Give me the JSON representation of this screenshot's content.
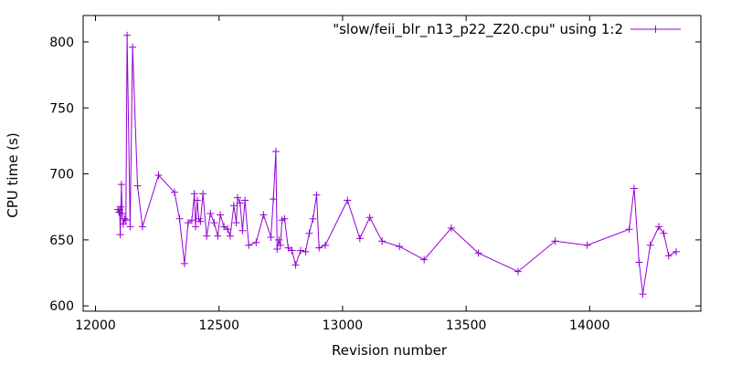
{
  "chart_data": {
    "type": "line",
    "xlabel": "Revision number",
    "ylabel": "CPU time (s)",
    "xlim": [
      11950,
      14450
    ],
    "ylim": [
      596,
      820
    ],
    "xticks": [
      12000,
      12500,
      13000,
      13500,
      14000
    ],
    "yticks": [
      600,
      650,
      700,
      750,
      800
    ],
    "grid": false,
    "legend_position": "top-right",
    "series": [
      {
        "name": "\"slow/feii_blr_n13_p22_Z20.cpu\" using 1:2",
        "color": "#9400d3",
        "marker": "plus",
        "points": [
          [
            12090,
            673
          ],
          [
            12095,
            671
          ],
          [
            12098,
            673
          ],
          [
            12100,
            654
          ],
          [
            12103,
            675
          ],
          [
            12105,
            692
          ],
          [
            12108,
            670
          ],
          [
            12112,
            662
          ],
          [
            12118,
            666
          ],
          [
            12123,
            665
          ],
          [
            12128,
            805
          ],
          [
            12140,
            660
          ],
          [
            12150,
            796
          ],
          [
            12170,
            691
          ],
          [
            12190,
            660
          ],
          [
            12255,
            699
          ],
          [
            12320,
            686
          ],
          [
            12340,
            666
          ],
          [
            12360,
            632
          ],
          [
            12375,
            663
          ],
          [
            12390,
            665
          ],
          [
            12400,
            685
          ],
          [
            12405,
            660
          ],
          [
            12412,
            680
          ],
          [
            12418,
            666
          ],
          [
            12425,
            664
          ],
          [
            12435,
            685
          ],
          [
            12450,
            653
          ],
          [
            12465,
            670
          ],
          [
            12480,
            663
          ],
          [
            12495,
            653
          ],
          [
            12505,
            669
          ],
          [
            12520,
            660
          ],
          [
            12535,
            658
          ],
          [
            12545,
            653
          ],
          [
            12560,
            676
          ],
          [
            12570,
            663
          ],
          [
            12575,
            682
          ],
          [
            12585,
            678
          ],
          [
            12595,
            657
          ],
          [
            12605,
            680
          ],
          [
            12620,
            646
          ],
          [
            12650,
            648
          ],
          [
            12680,
            669
          ],
          [
            12710,
            652
          ],
          [
            12720,
            681
          ],
          [
            12730,
            717
          ],
          [
            12735,
            643
          ],
          [
            12742,
            650
          ],
          [
            12748,
            646
          ],
          [
            12755,
            665
          ],
          [
            12765,
            666
          ],
          [
            12780,
            644
          ],
          [
            12795,
            642
          ],
          [
            12810,
            631
          ],
          [
            12830,
            642
          ],
          [
            12850,
            641
          ],
          [
            12865,
            655
          ],
          [
            12880,
            666
          ],
          [
            12895,
            684
          ],
          [
            12905,
            644
          ],
          [
            12930,
            646
          ],
          [
            13020,
            680
          ],
          [
            13070,
            651
          ],
          [
            13110,
            667
          ],
          [
            13160,
            649
          ],
          [
            13230,
            645
          ],
          [
            13330,
            635
          ],
          [
            13440,
            659
          ],
          [
            13550,
            640
          ],
          [
            13710,
            626
          ],
          [
            13860,
            649
          ],
          [
            13990,
            646
          ],
          [
            14160,
            658
          ],
          [
            14180,
            689
          ],
          [
            14200,
            633
          ],
          [
            14215,
            609
          ],
          [
            14245,
            646
          ],
          [
            14280,
            660
          ],
          [
            14300,
            655
          ],
          [
            14320,
            638
          ],
          [
            14350,
            641
          ]
        ]
      }
    ]
  }
}
